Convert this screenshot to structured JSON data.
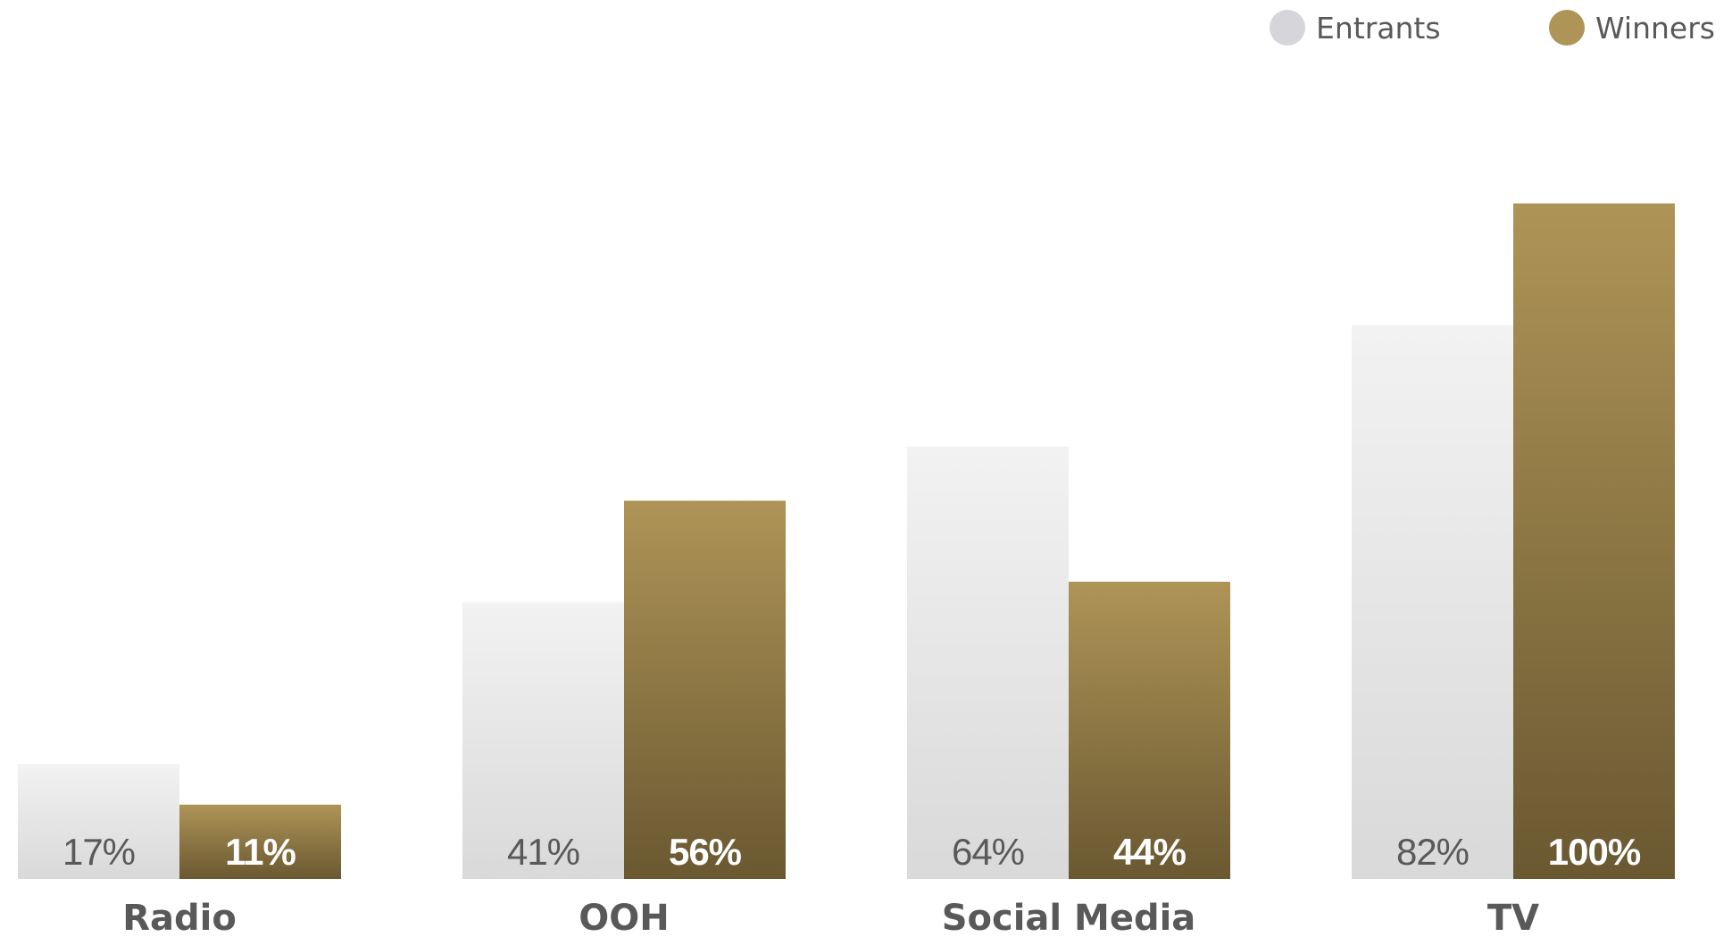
{
  "chart_data": {
    "type": "bar",
    "categories": [
      "Radio",
      "OOH",
      "Social Media",
      "TV"
    ],
    "series": [
      {
        "name": "Entrants",
        "values": [
          17,
          41,
          64,
          82
        ]
      },
      {
        "name": "Winners",
        "values": [
          11,
          56,
          44,
          100
        ]
      }
    ],
    "value_suffix": "%",
    "ylim": [
      0,
      100
    ],
    "grid": false,
    "legend_position": "top-right",
    "colors": {
      "entrants_top": "#f2f2f2",
      "entrants_bottom": "#d9d9d9",
      "entrants_legend": "#d6d6da",
      "winners_top": "#ae9456",
      "winners_bottom": "#6a5831",
      "winners_legend": "#ae9456",
      "entrants_label": "#595959",
      "winners_label": "#ffffff",
      "category_label": "#595959"
    }
  }
}
